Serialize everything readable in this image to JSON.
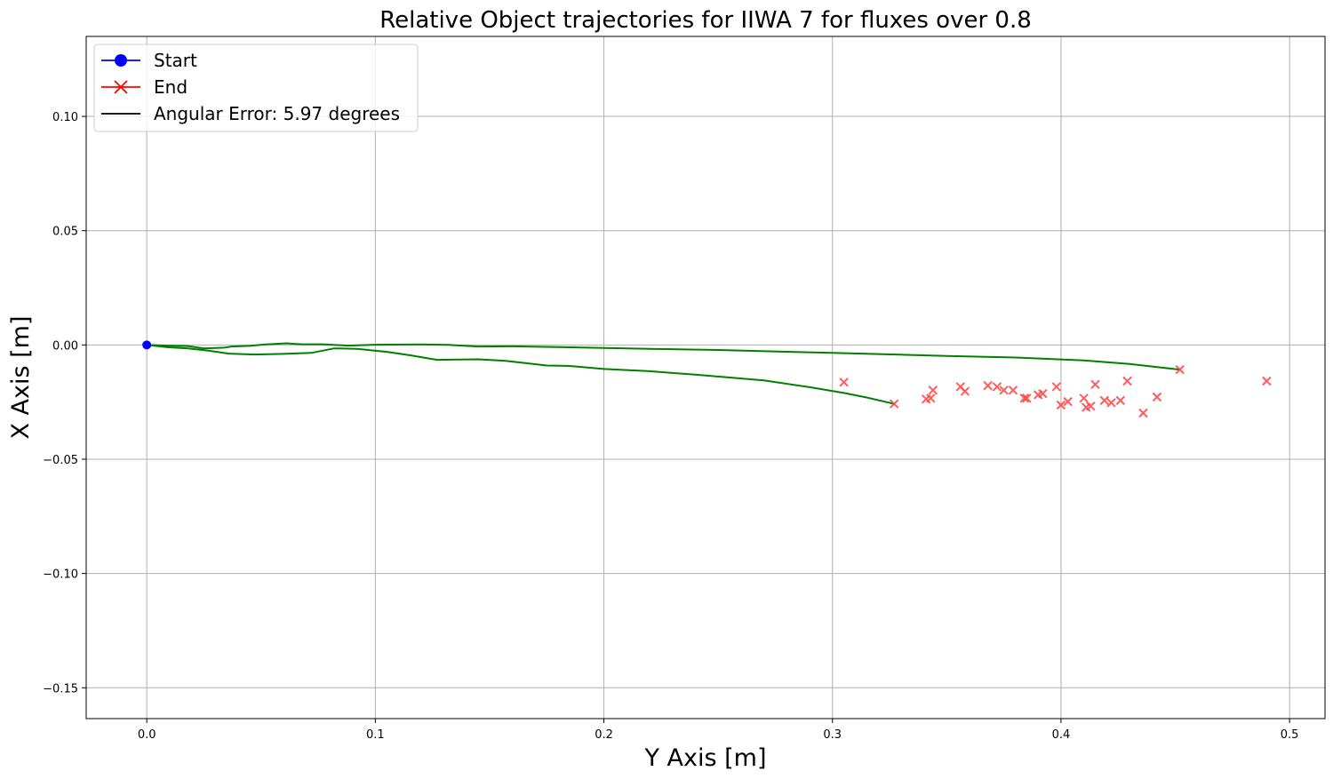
{
  "chart_data": {
    "type": "scatter",
    "title": "Relative Object trajectories for IIWA 7 for fluxes over 0.8",
    "xlabel": "Y Axis [m]",
    "ylabel": "X Axis [m]",
    "xlim": [
      -0.0265,
      0.5155
    ],
    "ylim": [
      -0.1635,
      0.135
    ],
    "xticks": [
      0.0,
      0.1,
      0.2,
      0.3,
      0.4,
      0.5
    ],
    "xtick_labels": [
      "0.0",
      "0.1",
      "0.2",
      "0.3",
      "0.4",
      "0.5"
    ],
    "yticks": [
      -0.15,
      -0.1,
      -0.05,
      0.0,
      0.05,
      0.1
    ],
    "ytick_labels": [
      "−0.15",
      "−0.10",
      "−0.05",
      "0.00",
      "0.05",
      "0.10"
    ],
    "grid": true,
    "legend": {
      "placement": "upper-left",
      "entries": [
        {
          "label": "Start",
          "color": "#0000ff",
          "marker": "circle"
        },
        {
          "label": "End",
          "color": "#ff0000",
          "marker": "x"
        },
        {
          "label": "Angular Error: 5.97 degrees",
          "color": "#000000",
          "marker": "line"
        }
      ]
    },
    "colors": {
      "trajectory": "#008000",
      "start": "#0000ff",
      "end": "#ff4040",
      "grid": "#b0b0b0"
    },
    "start_point": [
      0.0,
      0.0
    ],
    "trajectories": [
      {
        "points": [
          [
            0.0,
            0.0
          ],
          [
            0.009,
            -0.0003
          ],
          [
            0.018,
            -0.0005
          ],
          [
            0.025,
            -0.0015
          ],
          [
            0.034,
            -0.0012
          ],
          [
            0.037,
            -0.0007
          ],
          [
            0.045,
            -0.0004
          ],
          [
            0.052,
            0.0002
          ],
          [
            0.061,
            0.0007
          ],
          [
            0.068,
            0.0003
          ],
          [
            0.077,
            0.0003
          ],
          [
            0.088,
            -0.0003
          ],
          [
            0.1,
            0.0001
          ],
          [
            0.12,
            0.0002
          ],
          [
            0.132,
            0.0
          ],
          [
            0.145,
            -0.0007
          ],
          [
            0.16,
            -0.0006
          ],
          [
            0.18,
            -0.0009
          ],
          [
            0.22,
            -0.0017
          ],
          [
            0.25,
            -0.0022
          ],
          [
            0.3,
            -0.0035
          ],
          [
            0.35,
            -0.0048
          ],
          [
            0.38,
            -0.0055
          ],
          [
            0.41,
            -0.0068
          ],
          [
            0.43,
            -0.0083
          ],
          [
            0.452,
            -0.0108
          ]
        ]
      },
      {
        "points": [
          [
            0.0,
            0.0
          ],
          [
            0.009,
            -0.001
          ],
          [
            0.018,
            -0.0015
          ],
          [
            0.027,
            -0.0025
          ],
          [
            0.036,
            -0.0038
          ],
          [
            0.047,
            -0.0042
          ],
          [
            0.06,
            -0.0039
          ],
          [
            0.072,
            -0.0035
          ],
          [
            0.082,
            -0.0015
          ],
          [
            0.092,
            -0.0017
          ],
          [
            0.105,
            -0.003
          ],
          [
            0.115,
            -0.0045
          ],
          [
            0.127,
            -0.0065
          ],
          [
            0.145,
            -0.0063
          ],
          [
            0.157,
            -0.007
          ],
          [
            0.175,
            -0.009
          ],
          [
            0.185,
            -0.0092
          ],
          [
            0.2,
            -0.0105
          ],
          [
            0.22,
            -0.0115
          ],
          [
            0.24,
            -0.013
          ],
          [
            0.27,
            -0.0155
          ],
          [
            0.29,
            -0.0185
          ],
          [
            0.305,
            -0.021
          ],
          [
            0.315,
            -0.023
          ],
          [
            0.327,
            -0.0258
          ]
        ]
      }
    ],
    "end_points": [
      [
        0.305,
        -0.0163
      ],
      [
        0.327,
        -0.0258
      ],
      [
        0.341,
        -0.0237
      ],
      [
        0.343,
        -0.0233
      ],
      [
        0.344,
        -0.0198
      ],
      [
        0.356,
        -0.0183
      ],
      [
        0.358,
        -0.0203
      ],
      [
        0.368,
        -0.0178
      ],
      [
        0.372,
        -0.0183
      ],
      [
        0.375,
        -0.0198
      ],
      [
        0.379,
        -0.0198
      ],
      [
        0.384,
        -0.0233
      ],
      [
        0.385,
        -0.0233
      ],
      [
        0.39,
        -0.0218
      ],
      [
        0.392,
        -0.0213
      ],
      [
        0.398,
        -0.0183
      ],
      [
        0.4,
        -0.0263
      ],
      [
        0.403,
        -0.0248
      ],
      [
        0.41,
        -0.0233
      ],
      [
        0.411,
        -0.0273
      ],
      [
        0.413,
        -0.0268
      ],
      [
        0.415,
        -0.0173
      ],
      [
        0.419,
        -0.0243
      ],
      [
        0.422,
        -0.0253
      ],
      [
        0.426,
        -0.0243
      ],
      [
        0.429,
        -0.0158
      ],
      [
        0.436,
        -0.0298
      ],
      [
        0.442,
        -0.0228
      ],
      [
        0.452,
        -0.0108
      ],
      [
        0.49,
        -0.0158
      ]
    ]
  }
}
